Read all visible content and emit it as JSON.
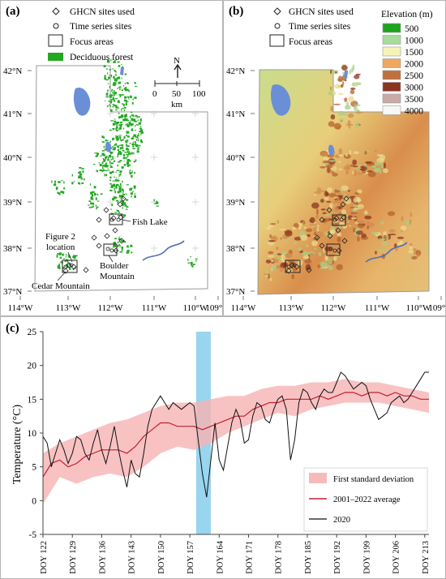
{
  "panel_a": {
    "label": "(a)",
    "legend": {
      "ghcn": "GHCN sites used",
      "ts": "Time series sites",
      "focus": "Focus areas",
      "forest": "Deciduous forest"
    },
    "scale": {
      "north": "N",
      "ticks": [
        "0",
        "50",
        "100"
      ],
      "unit": "km"
    },
    "lat_labels": [
      "42°N",
      "41°N",
      "40°N",
      "39°N",
      "38°N",
      "37°N"
    ],
    "lon_labels": [
      "114°W",
      "113°W",
      "112°W",
      "111°W",
      "110°W",
      "109°W"
    ],
    "annotations": {
      "fish_lake": "Fish Lake",
      "figure2_line1": "Figure 2",
      "figure2_line2": "location",
      "boulder_line1": "Boulder",
      "boulder_line2": "Mountain",
      "cedar": "Cedar Mountain"
    },
    "colors": {
      "forest": "#22a822",
      "water": "#6a8fd6"
    }
  },
  "panel_b": {
    "label": "(b)",
    "legend": {
      "ghcn": "GHCN sites used",
      "ts": "Time series sites",
      "focus": "Focus areas"
    },
    "elevation_title": "Elevation (m)",
    "elevation_classes": [
      {
        "value": "500",
        "color": "#1ea51e"
      },
      {
        "value": "1000",
        "color": "#a8dc9c"
      },
      {
        "value": "1500",
        "color": "#f6f3b8"
      },
      {
        "value": "2000",
        "color": "#f0a860"
      },
      {
        "value": "2500",
        "color": "#c0703f"
      },
      {
        "value": "3000",
        "color": "#8b3522"
      },
      {
        "value": "3500",
        "color": "#c9aaa6"
      },
      {
        "value": "4000",
        "color": "#f7f7f7"
      }
    ],
    "lat_labels": [
      "42°N",
      "41°N",
      "40°N",
      "39°N",
      "38°N",
      "37°N"
    ],
    "lon_labels": [
      "114°W",
      "113°W",
      "112°W",
      "111°W",
      "110°W",
      "109°W"
    ]
  },
  "panel_c": {
    "label": "(c)"
  },
  "chart_data": {
    "type": "line",
    "ylabel": "Temperature (°C)",
    "xlabel": "",
    "ylim": [
      -5,
      25
    ],
    "yticks": [
      -5,
      0,
      5,
      10,
      15,
      20,
      25
    ],
    "xlim": [
      122,
      214
    ],
    "xticks": [
      122,
      129,
      136,
      143,
      150,
      157,
      164,
      171,
      178,
      185,
      192,
      199,
      206,
      213
    ],
    "xtick_labels": [
      "DOY 122",
      "DOY 129",
      "DOY 136",
      "DOY 143",
      "DOY 150",
      "DOY 157",
      "DOY 164",
      "DOY 171",
      "DOY 178",
      "DOY 185",
      "DOY 192",
      "DOY 199",
      "DOY 206",
      "DOY 213"
    ],
    "highlight": {
      "x_start": 158.5,
      "x_end": 162,
      "color": "#87ceeb"
    },
    "band": {
      "name": "First standard deviation",
      "color": "#f6b3b3",
      "x": [
        122,
        126,
        130,
        134,
        138,
        142,
        146,
        150,
        154,
        158,
        162,
        166,
        170,
        174,
        178,
        182,
        186,
        190,
        194,
        198,
        202,
        206,
        210,
        214
      ],
      "lower": [
        -0.5,
        3.5,
        2.5,
        3.5,
        4,
        3.5,
        5,
        7,
        8,
        7.5,
        8.5,
        10,
        11,
        12,
        13,
        12.5,
        13.5,
        14,
        14.5,
        14.5,
        14.5,
        14,
        13.5,
        13
      ],
      "upper": [
        7,
        8.5,
        9.5,
        10.5,
        11.5,
        12,
        13,
        14,
        14.5,
        14.5,
        15,
        15.5,
        15.5,
        16.5,
        17,
        17,
        17.5,
        17.5,
        18,
        17.5,
        17.5,
        17,
        16.5,
        16
      ]
    },
    "series": [
      {
        "name": "2001–2022 average",
        "color": "#c02030",
        "x": [
          122,
          124,
          126,
          128,
          130,
          132,
          134,
          136,
          138,
          140,
          142,
          144,
          146,
          148,
          150,
          152,
          154,
          156,
          158,
          160,
          162,
          164,
          166,
          168,
          170,
          172,
          174,
          176,
          178,
          180,
          182,
          184,
          186,
          188,
          190,
          192,
          194,
          196,
          198,
          200,
          202,
          204,
          206,
          208,
          210,
          212,
          214
        ],
        "y": [
          3.5,
          5.5,
          6,
          5,
          5.5,
          6.5,
          7,
          7.5,
          7.5,
          7.5,
          7,
          8,
          9.5,
          10.5,
          11.5,
          11.5,
          11,
          11,
          11,
          10.5,
          11,
          11.5,
          12,
          12.5,
          12.5,
          13.5,
          14,
          14.5,
          14.5,
          15,
          15,
          15,
          15,
          15.5,
          15,
          15.5,
          16,
          16,
          15.5,
          16,
          16,
          15.5,
          16,
          15.5,
          15.5,
          15,
          15
        ]
      },
      {
        "name": "2020",
        "color": "#111111",
        "x": [
          122,
          123,
          124,
          125,
          126,
          127,
          128,
          129,
          130,
          131,
          132,
          133,
          134,
          135,
          136,
          137,
          138,
          139,
          140,
          141,
          142,
          143,
          144,
          145,
          146,
          147,
          148,
          149,
          150,
          151,
          152,
          153,
          154,
          155,
          156,
          157,
          158,
          159,
          160,
          161,
          162,
          163,
          164,
          165,
          166,
          167,
          168,
          169,
          170,
          171,
          172,
          173,
          174,
          175,
          176,
          177,
          178,
          179,
          180,
          181,
          182,
          183,
          184,
          185,
          186,
          187,
          188,
          189,
          190,
          191,
          192,
          193,
          194,
          195,
          196,
          197,
          198,
          199,
          200,
          201,
          202,
          203,
          204,
          205,
          206,
          207,
          208,
          209,
          210,
          211,
          212,
          213,
          214
        ],
        "y": [
          9.5,
          8.5,
          5,
          7,
          9,
          7.5,
          5.5,
          7,
          9.5,
          9,
          7,
          6,
          8.5,
          10.5,
          7.5,
          5.5,
          8,
          11,
          7.5,
          4.5,
          2,
          6,
          4,
          3.5,
          7,
          11,
          13.5,
          14.5,
          15.5,
          14.5,
          13.5,
          14.5,
          14,
          13.5,
          14,
          14.5,
          14,
          9,
          4,
          0.5,
          6,
          11.5,
          6,
          4.5,
          8,
          11.5,
          13.5,
          12,
          8.5,
          9,
          12.5,
          14.5,
          14,
          12,
          11.5,
          13.5,
          15,
          15.5,
          13.5,
          6,
          9,
          14.5,
          16.5,
          16,
          14.5,
          13.5,
          15.5,
          16.5,
          16,
          16,
          17.5,
          19,
          18.5,
          17.5,
          16.5,
          17,
          17.5,
          17,
          15,
          13.5,
          12,
          12.5,
          13,
          14.5,
          15,
          15.5,
          14.5,
          15,
          16,
          17,
          18,
          19,
          19
        ]
      }
    ],
    "legend": {
      "position": "lower-right",
      "items": [
        "First standard deviation",
        "2001–2022 average",
        "2020"
      ]
    },
    "grid": false
  }
}
